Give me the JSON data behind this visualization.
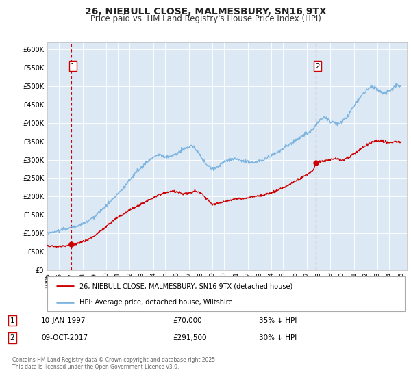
{
  "title": "26, NIEBULL CLOSE, MALMESBURY, SN16 9TX",
  "subtitle": "Price paid vs. HM Land Registry's House Price Index (HPI)",
  "title_fontsize": 10,
  "subtitle_fontsize": 8.5,
  "background_color": "#ffffff",
  "plot_bg_color": "#dce9f5",
  "grid_color": "#ffffff",
  "ylim": [
    0,
    620000
  ],
  "yticks": [
    0,
    50000,
    100000,
    150000,
    200000,
    250000,
    300000,
    350000,
    400000,
    450000,
    500000,
    550000,
    600000
  ],
  "xlim_start": 1995.0,
  "xlim_end": 2025.5,
  "hpi_color": "#7eb5e0",
  "price_color": "#cc0000",
  "vline_color": "#cc0000",
  "sale1_x": 1997.03,
  "sale1_y": 70000,
  "sale1_label": "1",
  "sale1_date": "10-JAN-1997",
  "sale1_price": "£70,000",
  "sale1_hpi": "35% ↓ HPI",
  "sale2_x": 2017.77,
  "sale2_y": 291500,
  "sale2_label": "2",
  "sale2_date": "09-OCT-2017",
  "sale2_price": "£291,500",
  "sale2_hpi": "30% ↓ HPI",
  "legend_label_price": "26, NIEBULL CLOSE, MALMESBURY, SN16 9TX (detached house)",
  "legend_label_hpi": "HPI: Average price, detached house, Wiltshire",
  "footnote": "Contains HM Land Registry data © Crown copyright and database right 2025.\nThis data is licensed under the Open Government Licence v3.0.",
  "xtick_years": [
    1995,
    1996,
    1997,
    1998,
    1999,
    2000,
    2001,
    2002,
    2003,
    2004,
    2005,
    2006,
    2007,
    2008,
    2009,
    2010,
    2011,
    2012,
    2013,
    2014,
    2015,
    2016,
    2017,
    2018,
    2019,
    2020,
    2021,
    2022,
    2023,
    2024,
    2025
  ]
}
